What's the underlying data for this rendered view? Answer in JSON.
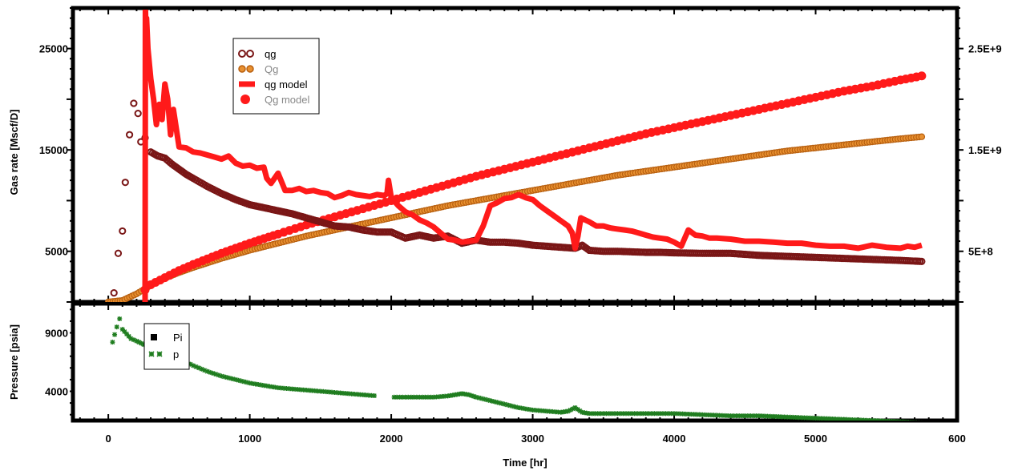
{
  "chart_data": [
    {
      "name": "rate-panel",
      "type": "scatter",
      "xlim": [
        -250,
        6000
      ],
      "ylim_left": [
        0,
        29000
      ],
      "ylim_right": [
        0,
        2900000000
      ],
      "ylabel": "Gas rate [Mscf/D]",
      "left_ticks": [
        "5000",
        "15000",
        "25000"
      ],
      "right_ticks": [
        "5E+8",
        "1.5E+9",
        "2.5E+9"
      ],
      "legend_position": "top-left",
      "colors": {
        "qg": "#7a1616",
        "Qg": "#cc6f10",
        "qg_model": "#ff1a1a",
        "Qg_model": "#ff1a1a"
      },
      "series": [
        {
          "name": "qg",
          "axis": "left",
          "x": [
            40,
            70,
            100,
            120,
            150,
            180,
            210,
            230,
            260,
            300,
            350,
            400,
            450,
            500,
            550,
            600,
            700,
            800,
            900,
            1000,
            1100,
            1200,
            1300,
            1400,
            1500,
            1600,
            1700,
            1800,
            1900,
            1950,
            2000,
            2050,
            2100,
            2200,
            2300,
            2400,
            2500,
            2600,
            2700,
            2800,
            2900,
            3000,
            3100,
            3200,
            3300,
            3350,
            3400,
            3500,
            3600,
            3700,
            3800,
            3900,
            4000,
            4200,
            4400,
            4600,
            4800,
            5000,
            5200,
            5400,
            5600,
            5750
          ],
          "values": [
            900,
            4800,
            7000,
            11800,
            16500,
            19600,
            18600,
            15800,
            16200,
            14800,
            14400,
            14200,
            13600,
            13100,
            12600,
            12200,
            11400,
            10700,
            10100,
            9600,
            9300,
            9000,
            8700,
            8300,
            7900,
            7500,
            7400,
            7100,
            6900,
            6900,
            6900,
            6600,
            6300,
            6600,
            6300,
            6500,
            5800,
            6100,
            5900,
            5900,
            5800,
            5600,
            5500,
            5400,
            5300,
            5600,
            5100,
            5000,
            5000,
            4950,
            4900,
            4900,
            4850,
            4800,
            4800,
            4600,
            4500,
            4400,
            4300,
            4200,
            4100,
            4000
          ]
        },
        {
          "name": "Qg",
          "axis": "right",
          "x": [
            0,
            100,
            200,
            300,
            400,
            500,
            600,
            700,
            800,
            900,
            1000,
            1200,
            1400,
            1600,
            1800,
            2000,
            2200,
            2400,
            2600,
            2800,
            3000,
            3200,
            3400,
            3600,
            3800,
            4000,
            4200,
            4400,
            4600,
            4800,
            5000,
            5200,
            5400,
            5600,
            5750
          ],
          "values": [
            0,
            15000000,
            80000000,
            165000000,
            235000000,
            290000000,
            340000000,
            385000000,
            430000000,
            470000000,
            510000000,
            580000000,
            650000000,
            710000000,
            770000000,
            830000000,
            890000000,
            950000000,
            1000000000,
            1050000000,
            1100000000,
            1150000000,
            1200000000,
            1250000000,
            1290000000,
            1330000000,
            1370000000,
            1410000000,
            1450000000,
            1490000000,
            1520000000,
            1550000000,
            1580000000,
            1610000000,
            1630000000
          ]
        },
        {
          "name": "qg model",
          "axis": "left",
          "x": [
            260,
            262,
            265,
            270,
            280,
            300,
            320,
            340,
            360,
            380,
            400,
            420,
            440,
            460,
            500,
            550,
            600,
            650,
            700,
            750,
            800,
            850,
            900,
            950,
            1000,
            1050,
            1100,
            1120,
            1150,
            1200,
            1250,
            1300,
            1350,
            1400,
            1450,
            1500,
            1550,
            1600,
            1650,
            1700,
            1750,
            1800,
            1850,
            1900,
            1950,
            1970,
            1980,
            2000,
            2050,
            2100,
            2150,
            2200,
            2250,
            2300,
            2350,
            2400,
            2450,
            2500,
            2550,
            2600,
            2650,
            2700,
            2750,
            2800,
            2850,
            2900,
            2950,
            3000,
            3050,
            3100,
            3150,
            3200,
            3250,
            3280,
            3300,
            3320,
            3340,
            3400,
            3450,
            3500,
            3550,
            3600,
            3650,
            3700,
            3750,
            3800,
            3850,
            3900,
            3950,
            4000,
            4050,
            4100,
            4150,
            4200,
            4250,
            4300,
            4400,
            4500,
            4600,
            4700,
            4800,
            4900,
            5000,
            5100,
            5200,
            5300,
            5400,
            5500,
            5600,
            5650,
            5700,
            5750
          ],
          "values": [
            0,
            29000,
            27000,
            28000,
            25000,
            22000,
            20000,
            17500,
            19500,
            18000,
            21500,
            20000,
            16500,
            19000,
            15300,
            15200,
            14800,
            14700,
            14500,
            14300,
            14100,
            14400,
            13700,
            13400,
            13500,
            13200,
            13300,
            12200,
            11700,
            12700,
            11000,
            11000,
            11200,
            10900,
            11000,
            10800,
            10700,
            10300,
            10500,
            10800,
            10600,
            10500,
            10400,
            10600,
            10500,
            10700,
            12000,
            10300,
            9500,
            8900,
            8600,
            8100,
            7800,
            7400,
            6800,
            6200,
            6100,
            5900,
            6000,
            6100,
            7500,
            9500,
            9800,
            10200,
            10300,
            10600,
            10300,
            10100,
            9500,
            9000,
            8500,
            8000,
            7500,
            6800,
            5300,
            6500,
            8300,
            7900,
            7500,
            7500,
            7300,
            7200,
            7100,
            7000,
            6800,
            6600,
            6400,
            6300,
            6200,
            5900,
            5500,
            7100,
            6600,
            6500,
            6300,
            6300,
            6200,
            6000,
            6000,
            5900,
            5800,
            5800,
            5600,
            5500,
            5500,
            5300,
            5600,
            5400,
            5300,
            5500,
            5400,
            5600
          ]
        },
        {
          "name": "Qg model",
          "axis": "right",
          "x": [
            260,
            300,
            400,
            500,
            600,
            700,
            800,
            900,
            1000,
            1100,
            1200,
            1400,
            1600,
            1800,
            2000,
            2200,
            2400,
            2600,
            2800,
            3000,
            3200,
            3400,
            3600,
            3800,
            4000,
            4200,
            4400,
            4600,
            4800,
            5000,
            5200,
            5400,
            5600,
            5750
          ],
          "values": [
            120000000,
            170000000,
            240000000,
            310000000,
            370000000,
            425000000,
            480000000,
            530000000,
            580000000,
            625000000,
            670000000,
            760000000,
            840000000,
            920000000,
            1000000000,
            1080000000,
            1160000000,
            1240000000,
            1310000000,
            1380000000,
            1450000000,
            1520000000,
            1590000000,
            1660000000,
            1720000000,
            1780000000,
            1840000000,
            1900000000,
            1960000000,
            2020000000,
            2080000000,
            2130000000,
            2190000000,
            2230000000
          ]
        }
      ]
    },
    {
      "name": "pressure-panel",
      "type": "scatter",
      "xlim": [
        -250,
        6000
      ],
      "ylim": [
        1500,
        11500
      ],
      "xlabel": "Time [hr]",
      "ylabel": "Pressure [psia]",
      "left_ticks": [
        "4000",
        "9000"
      ],
      "x_ticks": [
        "0",
        "1000",
        "2000",
        "3000",
        "4000",
        "5000",
        "600"
      ],
      "legend_position": "top-left",
      "colors": {
        "Pi": "#000000",
        "p": "#1f7d1f"
      },
      "series": [
        {
          "name": "Pi",
          "x": [],
          "values": []
        },
        {
          "name": "p",
          "x": [
            30,
            60,
            80,
            100,
            130,
            160,
            200,
            250,
            300,
            350,
            400,
            450,
            500,
            600,
            700,
            800,
            900,
            1000,
            1100,
            1200,
            1300,
            1400,
            1500,
            1600,
            1700,
            1800,
            1900,
            2020,
            2100,
            2200,
            2300,
            2400,
            2450,
            2500,
            2550,
            2600,
            2700,
            2800,
            2900,
            3000,
            3100,
            3200,
            3250,
            3300,
            3350,
            3400,
            3500,
            3600,
            3700,
            3800,
            3900,
            4000,
            4200,
            4400,
            4600,
            4800,
            5000,
            5200,
            5400,
            5600,
            5750
          ],
          "values": [
            8200,
            9500,
            10200,
            9300,
            8900,
            8500,
            8300,
            8000,
            7800,
            7500,
            7300,
            7000,
            6800,
            6200,
            5700,
            5300,
            5000,
            4700,
            4500,
            4300,
            4200,
            4100,
            4000,
            3900,
            3800,
            3700,
            3600,
            3500,
            3500,
            3500,
            3500,
            3600,
            3700,
            3800,
            3700,
            3500,
            3200,
            2900,
            2600,
            2400,
            2300,
            2200,
            2300,
            2600,
            2200,
            2100,
            2100,
            2100,
            2100,
            2100,
            2100,
            2100,
            2000,
            1900,
            1900,
            1800,
            1700,
            1600,
            1500,
            1400,
            1300
          ]
        }
      ]
    }
  ]
}
